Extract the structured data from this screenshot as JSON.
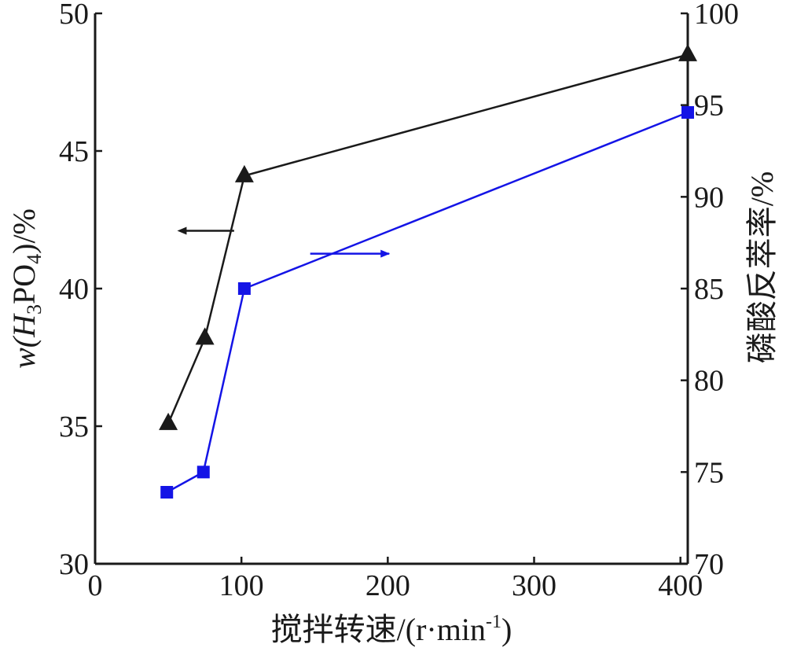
{
  "chart_data": {
    "type": "line",
    "xlabel": "搅拌转速/(r·min",
    "xlabel_sup": "-1",
    "xlabel_close": ")",
    "xlim": [
      0,
      405
    ],
    "xticks": [
      "0",
      "100",
      "200",
      "300",
      "400"
    ],
    "ylabel_left": {
      "prefix": "w(H",
      "sub1": "3",
      "mid": "PO",
      "sub2": "4",
      "suffix": ")/%"
    },
    "ylim_left": [
      30,
      50
    ],
    "yticks_left": [
      "30",
      "35",
      "40",
      "45",
      "50"
    ],
    "ylabel_right": "磷酸反萃率/%",
    "ylim_right": [
      70,
      100
    ],
    "yticks_right": [
      "70",
      "75",
      "80",
      "85",
      "90",
      "95",
      "100"
    ],
    "series": [
      {
        "axis": "left",
        "marker": "triangle",
        "color": "#1a1a1a",
        "x": [
          50,
          75,
          102,
          405
        ],
        "y": [
          35.1,
          38.2,
          44.1,
          48.5
        ]
      },
      {
        "axis": "right",
        "marker": "square",
        "color": "#1414e6",
        "x": [
          49,
          74,
          102,
          405
        ],
        "y": [
          73.9,
          75.0,
          85.0,
          94.6
        ]
      }
    ],
    "annotations": [
      {
        "type": "arrow",
        "direction": "left",
        "series": 0,
        "color": "#1a1a1a"
      },
      {
        "type": "arrow",
        "direction": "right",
        "series": 1,
        "color": "#1414e6"
      }
    ],
    "grid": false,
    "legend": "none"
  }
}
